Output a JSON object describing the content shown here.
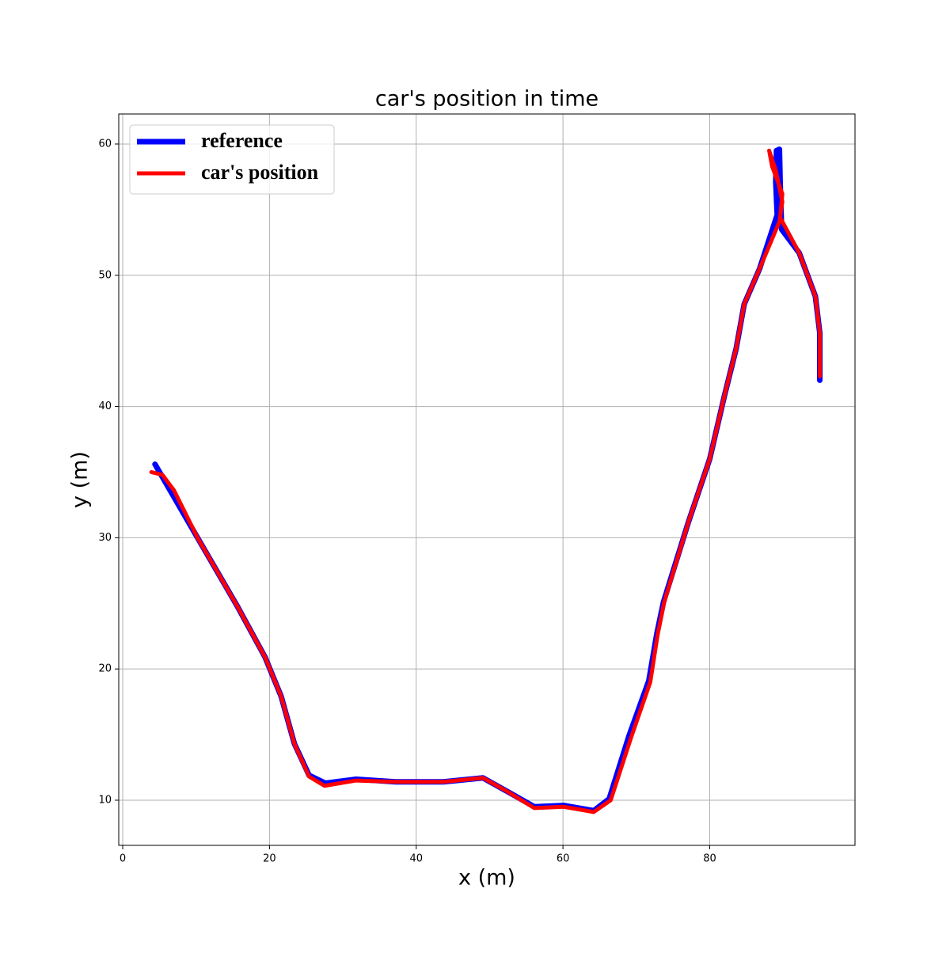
{
  "chart_data": {
    "type": "line",
    "title": "car's position in time",
    "x_label": "x (m)",
    "y_label": "y (m)",
    "xlim": [
      -0.54,
      99.8
    ],
    "ylim": [
      6.56,
      62.29
    ],
    "xticks": [
      0,
      20,
      40,
      60,
      80
    ],
    "yticks": [
      10,
      20,
      30,
      40,
      50,
      60
    ],
    "grid": true,
    "legend": "upper left",
    "series": [
      {
        "name": "reference",
        "color": "#0000ff",
        "x": [
          4.4,
          10.2,
          15.6,
          19.4,
          21.6,
          23.4,
          25.4,
          27.6,
          31.8,
          37.2,
          43.7,
          49.1,
          52.3,
          56.1,
          60.1,
          64.2,
          66.3,
          69.0,
          71.7,
          72.8,
          73.7,
          77.1,
          80.0,
          82.0,
          83.6,
          84.7,
          86.8,
          89.2,
          89.0,
          89.1,
          89.5,
          89.6,
          89.8,
          92.2,
          94.4,
          95.0,
          95.0
        ],
        "values": [
          35.6,
          30.0,
          24.8,
          20.9,
          17.9,
          14.3,
          11.9,
          11.3,
          11.6,
          11.4,
          11.4,
          11.7,
          10.7,
          9.5,
          9.6,
          9.2,
          10.1,
          14.9,
          19.1,
          22.7,
          25.1,
          31.2,
          36.0,
          40.8,
          44.4,
          47.8,
          50.5,
          54.6,
          57.1,
          59.5,
          59.6,
          57.1,
          53.5,
          51.7,
          48.4,
          45.6,
          42.0
        ]
      },
      {
        "name": "car's position",
        "color": "#ff0000",
        "x": [
          3.9,
          5.4,
          7.0,
          10.2,
          15.6,
          19.4,
          21.6,
          23.4,
          25.4,
          27.5,
          31.8,
          37.2,
          43.7,
          49.1,
          52.3,
          56.1,
          60.1,
          64.2,
          66.5,
          69.3,
          71.9,
          72.9,
          73.8,
          77.1,
          80.0,
          82.0,
          83.6,
          84.7,
          86.8,
          89.5,
          89.9,
          89.0,
          88.1,
          88.5,
          89.9,
          89.6,
          92.2,
          94.4,
          95.0,
          95.0
        ],
        "values": [
          35.0,
          34.8,
          33.6,
          30.0,
          24.8,
          20.9,
          17.9,
          14.3,
          11.8,
          11.1,
          11.5,
          11.4,
          11.4,
          11.7,
          10.7,
          9.4,
          9.5,
          9.1,
          10.0,
          14.8,
          19.0,
          22.6,
          25.1,
          31.2,
          36.0,
          40.8,
          44.4,
          47.8,
          50.5,
          54.1,
          55.6,
          58.0,
          59.5,
          58.3,
          56.2,
          54.4,
          51.7,
          48.4,
          45.6,
          42.3
        ]
      }
    ]
  }
}
